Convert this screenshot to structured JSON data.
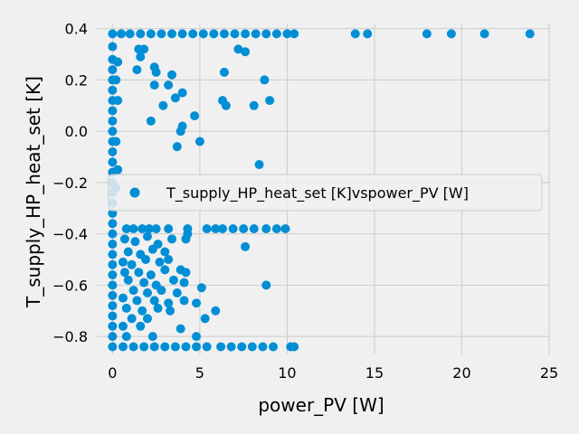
{
  "chart_data": {
    "type": "scatter",
    "title": "",
    "xlabel": "power_PV [W]",
    "ylabel": "T_supply_HP_heat_set [K]",
    "xlim": [
      -0.9,
      25
    ],
    "ylim": [
      -0.87,
      0.42
    ],
    "xticks": [
      0,
      5,
      10,
      15,
      20,
      25
    ],
    "xtick_labels": [
      "0",
      "5",
      "10",
      "15",
      "20",
      "25"
    ],
    "yticks": [
      -0.8,
      -0.6,
      -0.4,
      -0.2,
      0.0,
      0.2,
      0.4
    ],
    "ytick_labels": [
      "−0.8",
      "−0.6",
      "−0.4",
      "−0.2",
      "0.0",
      "0.2",
      "0.4"
    ],
    "grid": true,
    "legend_position": "center-right",
    "colors": {
      "series": "#008fd5",
      "background": "#f0f0f0",
      "grid": "#cbcbcb"
    },
    "series": [
      {
        "name": "T_supply_HP_heat_set [K]vspower_PV [W]",
        "points": [
          [
            0,
            0.38
          ],
          [
            0.5,
            0.38
          ],
          [
            1.0,
            0.38
          ],
          [
            1.6,
            0.38
          ],
          [
            2.2,
            0.38
          ],
          [
            2.8,
            0.38
          ],
          [
            3.4,
            0.38
          ],
          [
            4.0,
            0.38
          ],
          [
            4.6,
            0.38
          ],
          [
            5.2,
            0.38
          ],
          [
            5.8,
            0.38
          ],
          [
            6.4,
            0.38
          ],
          [
            7.0,
            0.38
          ],
          [
            7.6,
            0.38
          ],
          [
            8.2,
            0.38
          ],
          [
            8.8,
            0.38
          ],
          [
            9.4,
            0.38
          ],
          [
            10.0,
            0.38
          ],
          [
            10.4,
            0.38
          ],
          [
            13.9,
            0.38
          ],
          [
            14.6,
            0.38
          ],
          [
            18.0,
            0.38
          ],
          [
            19.4,
            0.38
          ],
          [
            21.3,
            0.38
          ],
          [
            23.9,
            0.38
          ],
          [
            0,
            -0.84
          ],
          [
            0.6,
            -0.84
          ],
          [
            1.2,
            -0.84
          ],
          [
            1.8,
            -0.84
          ],
          [
            2.4,
            -0.84
          ],
          [
            3.0,
            -0.84
          ],
          [
            3.6,
            -0.84
          ],
          [
            4.2,
            -0.84
          ],
          [
            4.8,
            -0.84
          ],
          [
            5.4,
            -0.84
          ],
          [
            6.2,
            -0.84
          ],
          [
            6.8,
            -0.84
          ],
          [
            7.4,
            -0.84
          ],
          [
            8.0,
            -0.84
          ],
          [
            8.6,
            -0.84
          ],
          [
            9.2,
            -0.84
          ],
          [
            10.2,
            -0.84
          ],
          [
            10.4,
            -0.84
          ],
          [
            0,
            0.33
          ],
          [
            0,
            0.28
          ],
          [
            0,
            0.24
          ],
          [
            0,
            0.2
          ],
          [
            0,
            0.16
          ],
          [
            0,
            0.12
          ],
          [
            0,
            0.08
          ],
          [
            0,
            0.04
          ],
          [
            0,
            0.0
          ],
          [
            0,
            -0.04
          ],
          [
            0,
            -0.08
          ],
          [
            0,
            -0.12
          ],
          [
            0,
            -0.16
          ],
          [
            0,
            -0.2
          ],
          [
            0,
            -0.24
          ],
          [
            0,
            -0.28
          ],
          [
            0,
            -0.32
          ],
          [
            0,
            -0.36
          ],
          [
            0,
            -0.4
          ],
          [
            0,
            -0.44
          ],
          [
            0,
            -0.48
          ],
          [
            0,
            -0.52
          ],
          [
            0,
            -0.56
          ],
          [
            0,
            -0.6
          ],
          [
            0,
            -0.64
          ],
          [
            0,
            -0.68
          ],
          [
            0,
            -0.72
          ],
          [
            0,
            -0.76
          ],
          [
            0,
            -0.8
          ],
          [
            0.3,
            0.27
          ],
          [
            0.2,
            0.2
          ],
          [
            0.3,
            0.12
          ],
          [
            0.2,
            -0.04
          ],
          [
            0.3,
            -0.15
          ],
          [
            0.2,
            -0.22
          ],
          [
            1.5,
            0.32
          ],
          [
            1.8,
            0.32
          ],
          [
            1.6,
            0.29
          ],
          [
            2.4,
            0.25
          ],
          [
            2.5,
            0.23
          ],
          [
            1.4,
            0.24
          ],
          [
            3.4,
            0.22
          ],
          [
            2.4,
            0.18
          ],
          [
            3.2,
            0.18
          ],
          [
            4.0,
            0.15
          ],
          [
            3.6,
            0.13
          ],
          [
            2.9,
            0.1
          ],
          [
            4.7,
            0.06
          ],
          [
            4.0,
            0.02
          ],
          [
            3.9,
            0.0
          ],
          [
            2.2,
            0.04
          ],
          [
            5.0,
            -0.04
          ],
          [
            3.7,
            -0.06
          ],
          [
            6.4,
            0.23
          ],
          [
            7.2,
            0.32
          ],
          [
            7.6,
            0.31
          ],
          [
            6.3,
            0.12
          ],
          [
            6.5,
            0.1
          ],
          [
            8.1,
            0.1
          ],
          [
            8.7,
            0.2
          ],
          [
            9.0,
            0.12
          ],
          [
            8.4,
            -0.13
          ],
          [
            0.8,
            -0.38
          ],
          [
            1.2,
            -0.38
          ],
          [
            1.7,
            -0.38
          ],
          [
            2.1,
            -0.38
          ],
          [
            2.5,
            -0.38
          ],
          [
            3.2,
            -0.38
          ],
          [
            4.3,
            -0.38
          ],
          [
            5.4,
            -0.38
          ],
          [
            5.9,
            -0.38
          ],
          [
            6.3,
            -0.38
          ],
          [
            6.9,
            -0.38
          ],
          [
            7.5,
            -0.38
          ],
          [
            8.1,
            -0.38
          ],
          [
            8.8,
            -0.38
          ],
          [
            9.4,
            -0.38
          ],
          [
            9.9,
            -0.38
          ],
          [
            0.7,
            -0.42
          ],
          [
            1.3,
            -0.43
          ],
          [
            2.0,
            -0.41
          ],
          [
            2.6,
            -0.44
          ],
          [
            3.4,
            -0.42
          ],
          [
            4.2,
            -0.42
          ],
          [
            0.9,
            -0.47
          ],
          [
            1.6,
            -0.48
          ],
          [
            2.3,
            -0.46
          ],
          [
            3.0,
            -0.47
          ],
          [
            0.6,
            -0.51
          ],
          [
            1.1,
            -0.52
          ],
          [
            1.9,
            -0.5
          ],
          [
            2.7,
            -0.51
          ],
          [
            3.2,
            -0.5
          ],
          [
            0.7,
            -0.55
          ],
          [
            1.5,
            -0.55
          ],
          [
            2.2,
            -0.56
          ],
          [
            3.0,
            -0.54
          ],
          [
            3.9,
            -0.54
          ],
          [
            4.2,
            -0.55
          ],
          [
            0.9,
            -0.58
          ],
          [
            1.8,
            -0.59
          ],
          [
            2.5,
            -0.6
          ],
          [
            3.5,
            -0.58
          ],
          [
            4.1,
            -0.59
          ],
          [
            1.2,
            -0.62
          ],
          [
            2.0,
            -0.63
          ],
          [
            2.8,
            -0.62
          ],
          [
            3.7,
            -0.63
          ],
          [
            5.1,
            -0.61
          ],
          [
            0.6,
            -0.65
          ],
          [
            1.4,
            -0.66
          ],
          [
            2.4,
            -0.66
          ],
          [
            3.2,
            -0.67
          ],
          [
            4.1,
            -0.66
          ],
          [
            4.8,
            -0.67
          ],
          [
            0.8,
            -0.69
          ],
          [
            1.7,
            -0.7
          ],
          [
            2.6,
            -0.69
          ],
          [
            3.3,
            -0.7
          ],
          [
            5.9,
            -0.7
          ],
          [
            1.1,
            -0.73
          ],
          [
            2.0,
            -0.73
          ],
          [
            5.3,
            -0.73
          ],
          [
            0.6,
            -0.76
          ],
          [
            1.6,
            -0.76
          ],
          [
            3.9,
            -0.77
          ],
          [
            0.8,
            -0.8
          ],
          [
            2.3,
            -0.8
          ],
          [
            4.8,
            -0.8
          ],
          [
            7.6,
            -0.45
          ],
          [
            8.8,
            -0.6
          ],
          [
            4.3,
            -0.4
          ]
        ]
      }
    ]
  }
}
